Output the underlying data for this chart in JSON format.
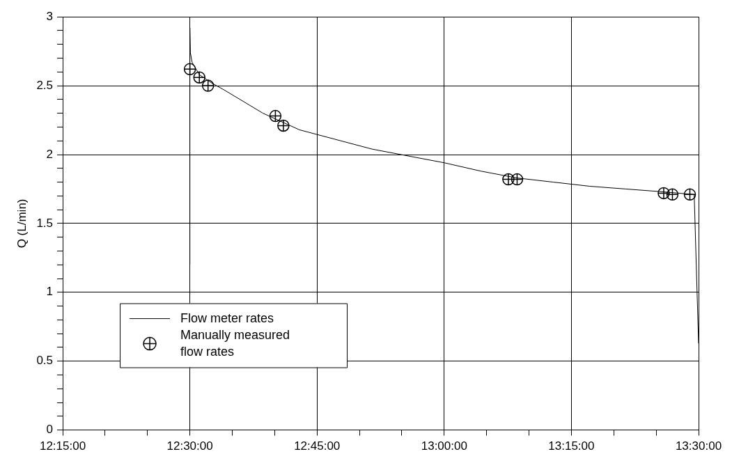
{
  "chart_data": {
    "type": "line",
    "ylabel": "Q (L/min)",
    "xlim": [
      12.25,
      13.5
    ],
    "xticks": [
      {
        "value": 12.25,
        "label": "12:15:00"
      },
      {
        "value": 12.3333,
        "label": null
      },
      {
        "value": 12.4167,
        "label": null
      },
      {
        "value": 12.5,
        "label": "12:30:00"
      },
      {
        "value": 12.5833,
        "label": null
      },
      {
        "value": 12.6667,
        "label": null
      },
      {
        "value": 12.75,
        "label": "12:45:00"
      },
      {
        "value": 12.8333,
        "label": null
      },
      {
        "value": 12.9167,
        "label": null
      },
      {
        "value": 13,
        "label": "13:00:00"
      },
      {
        "value": 13.0833,
        "label": null
      },
      {
        "value": 13.1667,
        "label": null
      },
      {
        "value": 13.25,
        "label": "13:15:00"
      },
      {
        "value": 13.3333,
        "label": null
      },
      {
        "value": 13.4167,
        "label": null
      },
      {
        "value": 13.5,
        "label": "13:30:00"
      }
    ],
    "ylim": [
      0,
      3
    ],
    "yticks": [
      0,
      {
        "value": 0.1,
        "label": null
      },
      {
        "value": 0.2,
        "label": null
      },
      {
        "value": 0.3,
        "label": null
      },
      {
        "value": 0.4,
        "label": null
      },
      0.5,
      {
        "value": 0.6,
        "label": null
      },
      {
        "value": 0.7,
        "label": null
      },
      {
        "value": 0.8,
        "label": null
      },
      {
        "value": 0.9,
        "label": null
      },
      1,
      {
        "value": 1.1,
        "label": null
      },
      {
        "value": 1.2,
        "label": null
      },
      {
        "value": 1.3,
        "label": null
      },
      {
        "value": 1.4,
        "label": null
      },
      1.5,
      {
        "value": 1.6,
        "label": null
      },
      {
        "value": 1.7,
        "label": null
      },
      {
        "value": 1.8,
        "label": null
      },
      {
        "value": 1.9,
        "label": null
      },
      2,
      {
        "value": 2.1,
        "label": null
      },
      {
        "value": 2.2,
        "label": null
      },
      {
        "value": 2.3,
        "label": null
      },
      {
        "value": 2.4,
        "label": null
      },
      2.5,
      {
        "value": 2.6,
        "label": null
      },
      {
        "value": 2.7,
        "label": null
      },
      {
        "value": 2.8,
        "label": null
      },
      {
        "value": 2.9,
        "label": null
      },
      3
    ],
    "grid": true,
    "legend": "bottom left",
    "series": [
      {
        "name": "Flow meter rates",
        "type": "line",
        "color": "#000000",
        "marker": "none",
        "x": [
          12.5,
          12.5,
          12.501,
          12.5043,
          12.5186,
          12.5428,
          12.5671,
          12.6438,
          12.7152,
          12.7865,
          12.8579,
          12.9292,
          13.0006,
          13.0719,
          13.1433,
          13.2146,
          13.286,
          13.3573,
          13.4287,
          13.4914,
          13.5
        ],
        "values": [
          1.2,
          2.92,
          2.74,
          2.67,
          2.58,
          2.52,
          2.47,
          2.3,
          2.18,
          2.11,
          2.04,
          1.99,
          1.94,
          1.88,
          1.83,
          1.8,
          1.77,
          1.75,
          1.73,
          1.71,
          0.63
        ]
      },
      {
        "name": "Manually measured flow rates",
        "type": "scatter",
        "color": "#000000",
        "marker": "circle",
        "x": [
          12.5,
          12.5186,
          12.5357,
          12.6681,
          12.6838,
          13.1261,
          13.1433,
          13.4315,
          13.4486,
          13.4829
        ],
        "values": [
          2.62,
          2.56,
          2.5,
          2.28,
          2.21,
          1.82,
          1.82,
          1.72,
          1.71,
          1.71
        ]
      }
    ]
  }
}
